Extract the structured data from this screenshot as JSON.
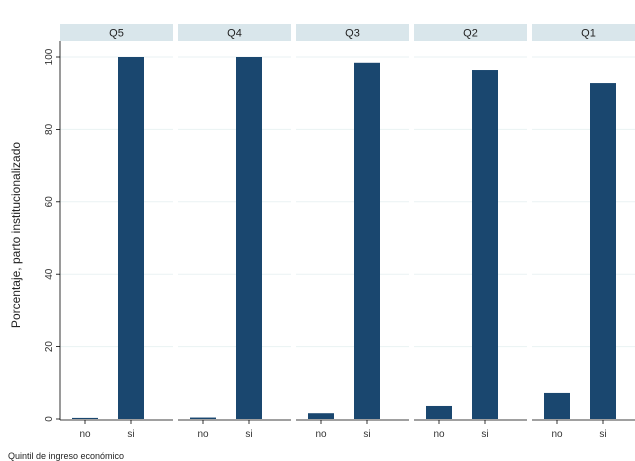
{
  "chart_data": {
    "type": "bar",
    "facet_variable_label": "Quintil de ingreso económico",
    "panels": [
      {
        "label": "Q5",
        "categories": [
          "no",
          "si"
        ],
        "values": [
          0.3,
          100
        ]
      },
      {
        "label": "Q4",
        "categories": [
          "no",
          "si"
        ],
        "values": [
          0.4,
          100
        ]
      },
      {
        "label": "Q3",
        "categories": [
          "no",
          "si"
        ],
        "values": [
          1.6,
          98.4
        ]
      },
      {
        "label": "Q2",
        "categories": [
          "no",
          "si"
        ],
        "values": [
          3.6,
          96.4
        ]
      },
      {
        "label": "Q1",
        "categories": [
          "no",
          "si"
        ],
        "values": [
          7.2,
          92.8
        ]
      }
    ],
    "ylabel": "Porcentaje, parto institucionalizado",
    "ylim": [
      0,
      100
    ],
    "yticks": [
      0,
      20,
      40,
      60,
      80,
      100
    ],
    "ytick_labels": [
      "0",
      "20",
      "40",
      "60",
      "80",
      "100"
    ],
    "grid": true,
    "colors": {
      "bar": "#1a476f",
      "grid": "#eaf2f3",
      "axis": "#000000",
      "facet_header": "#d9e6eb",
      "page_bg": "#ffffff",
      "plot_bg": "#ffffff"
    }
  }
}
